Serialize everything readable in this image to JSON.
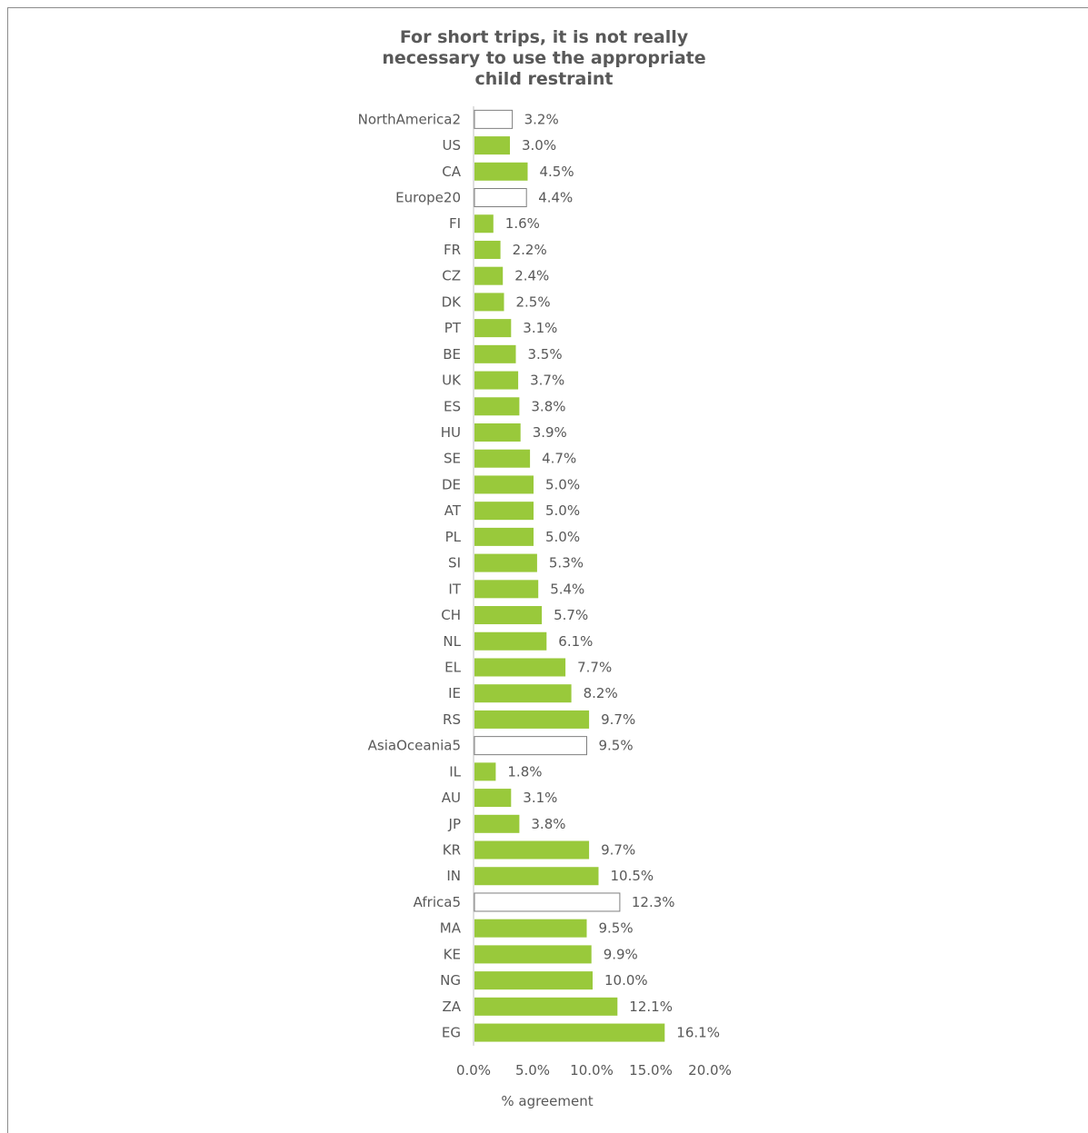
{
  "chart_data": {
    "type": "bar",
    "orientation": "horizontal",
    "title_lines": [
      "For short trips, it is not really",
      "necessary to use the appropriate",
      "child restraint"
    ],
    "xlabel": "% agreement",
    "ylabel": "",
    "xlim": [
      0,
      20
    ],
    "x_ticks": [
      "0.0%",
      "5.0%",
      "10.0%",
      "15.0%",
      "20.0%"
    ],
    "grid": false,
    "colors": {
      "country": "#99c93b",
      "region_fill": "#ffffff",
      "region_border": "#7f7f7f",
      "text": "#595959"
    },
    "categories": [
      "NorthAmerica2",
      "US",
      "CA",
      "Europe20",
      "FI",
      "FR",
      "CZ",
      "DK",
      "PT",
      "BE",
      "UK",
      "ES",
      "HU",
      "SE",
      "DE",
      "AT",
      "PL",
      "SI",
      "IT",
      "CH",
      "NL",
      "EL",
      "IE",
      "RS",
      "AsiaOceania5",
      "IL",
      "AU",
      "JP",
      "KR",
      "IN",
      "Africa5",
      "MA",
      "KE",
      "NG",
      "ZA",
      "EG"
    ],
    "values": [
      3.2,
      3.0,
      4.5,
      4.4,
      1.6,
      2.2,
      2.4,
      2.5,
      3.1,
      3.5,
      3.7,
      3.8,
      3.9,
      4.7,
      5.0,
      5.0,
      5.0,
      5.3,
      5.4,
      5.7,
      6.1,
      7.7,
      8.2,
      9.7,
      9.5,
      1.8,
      3.1,
      3.8,
      9.7,
      10.5,
      12.3,
      9.5,
      9.9,
      10.0,
      12.1,
      16.1
    ],
    "value_labels": [
      "3.2%",
      "3.0%",
      "4.5%",
      "4.4%",
      "1.6%",
      "2.2%",
      "2.4%",
      "2.5%",
      "3.1%",
      "3.5%",
      "3.7%",
      "3.8%",
      "3.9%",
      "4.7%",
      "5.0%",
      "5.0%",
      "5.0%",
      "5.3%",
      "5.4%",
      "5.7%",
      "6.1%",
      "7.7%",
      "8.2%",
      "9.7%",
      "9.5%",
      "1.8%",
      "3.1%",
      "3.8%",
      "9.7%",
      "10.5%",
      "12.3%",
      "9.5%",
      "9.9%",
      "10.0%",
      "12.1%",
      "16.1%"
    ],
    "region_rows": [
      "NorthAmerica2",
      "Europe20",
      "AsiaOceania5",
      "Africa5"
    ]
  }
}
